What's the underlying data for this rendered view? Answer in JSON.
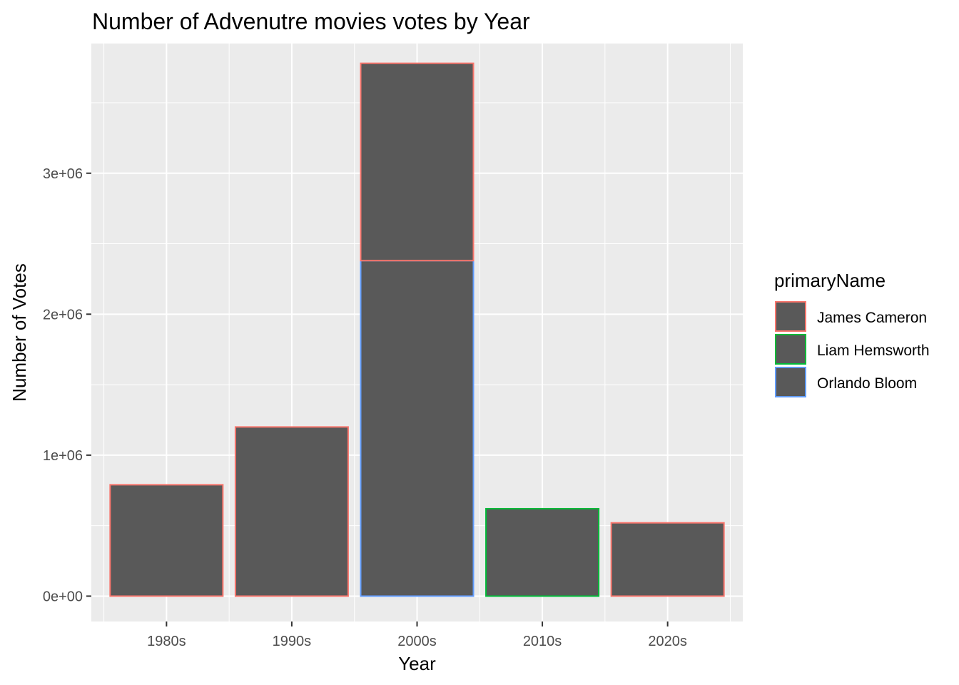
{
  "chart_data": {
    "type": "bar",
    "stacked": true,
    "title": "Number of Advenutre movies votes by Year",
    "xlabel": "Year",
    "ylabel": "Number of Votes",
    "categories": [
      "1980s",
      "1990s",
      "2000s",
      "2010s",
      "2020s"
    ],
    "ylim": [
      -180000,
      3920000
    ],
    "yticks": [
      0,
      1000000,
      2000000,
      3000000
    ],
    "ytick_labels": [
      "0e+00",
      "1e+06",
      "2e+06",
      "3e+06"
    ],
    "grid": true,
    "bar_fill": "#595959",
    "panel_background": "#ebebeb",
    "legend": {
      "title": "primaryName",
      "position": "right"
    },
    "series": [
      {
        "name": "James Cameron",
        "color": "#f8766d",
        "values": [
          790000,
          1200000,
          1400000,
          0,
          520000
        ]
      },
      {
        "name": "Liam Hemsworth",
        "color": "#00ba38",
        "values": [
          0,
          0,
          0,
          620000,
          0
        ]
      },
      {
        "name": "Orlando Bloom",
        "color": "#619cff",
        "values": [
          0,
          0,
          2380000,
          0,
          0
        ]
      }
    ]
  }
}
